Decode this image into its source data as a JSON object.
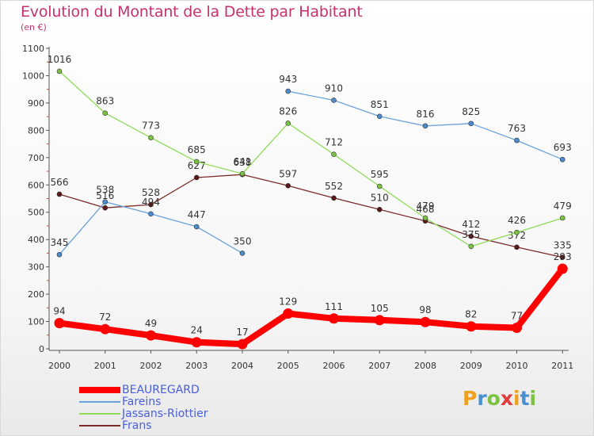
{
  "title": "Evolution du Montant de la Dette par Habitant",
  "subtitle": "(en €)",
  "logo": {
    "text": "Proxiti",
    "letters": [
      {
        "ch": "P",
        "color": "#f0a020"
      },
      {
        "ch": "r",
        "color": "#4a90d0"
      },
      {
        "ch": "o",
        "color": "#7cc242"
      },
      {
        "ch": "x",
        "color": "#e03c3c"
      },
      {
        "ch": "i",
        "color": "#f0a020"
      },
      {
        "ch": "t",
        "color": "#4a90d0"
      },
      {
        "ch": "i",
        "color": "#7cc242"
      }
    ]
  },
  "chart_data": {
    "type": "line",
    "title": "Evolution du Montant de la Dette par Habitant",
    "ylabel": "(en €)",
    "xlabel": "",
    "ylim": [
      0,
      1100
    ],
    "yticks": [
      0,
      100,
      200,
      300,
      400,
      500,
      600,
      700,
      800,
      900,
      1000,
      1100
    ],
    "categories": [
      "2000",
      "2001",
      "2002",
      "2003",
      "2004",
      "2005",
      "2006",
      "2007",
      "2008",
      "2009",
      "2010",
      "2011"
    ],
    "grid": false,
    "legend_position": "bottom-left",
    "series": [
      {
        "name": "Frans",
        "color": "#7a2a2a",
        "dot": "#5a1818",
        "values": [
          566,
          516,
          528,
          627,
          638,
          597,
          552,
          510,
          468,
          412,
          372,
          335
        ],
        "labels": [
          "566",
          "516",
          "528",
          "627",
          "638",
          "597",
          "552",
          "510",
          "468",
          "412",
          "372",
          "335"
        ]
      },
      {
        "name": "Jassans-Riottier",
        "color": "#8edc5a",
        "dot": "#7cc242",
        "values": [
          1016,
          863,
          773,
          685,
          641,
          826,
          712,
          595,
          479,
          375,
          426,
          479
        ],
        "labels": [
          "1016",
          "863",
          "773",
          "685",
          "641",
          "826",
          "712",
          "595",
          "479",
          "375",
          "426",
          "479"
        ]
      },
      {
        "name": "Fareins",
        "color": "#6aa2d8",
        "dot": "#4a8ccc",
        "values": [
          345,
          538,
          494,
          447,
          350,
          943,
          910,
          851,
          816,
          825,
          763,
          693
        ],
        "labels": [
          "345",
          "538",
          "494",
          "447",
          "350",
          "943",
          "910",
          "851",
          "816",
          "825",
          "763",
          "693"
        ],
        "gap_after_index": 4
      },
      {
        "name": "BEAUREGARD",
        "color": "#ff0000",
        "dot": "#ff0000",
        "values": [
          94,
          72,
          49,
          24,
          17,
          129,
          111,
          105,
          98,
          82,
          77,
          293
        ],
        "labels": [
          "94",
          "72",
          "49",
          "24",
          "17",
          "129",
          "111",
          "105",
          "98",
          "82",
          "77",
          "293"
        ],
        "thick": true
      }
    ],
    "legend": [
      {
        "name": "BEAUREGARD",
        "color": "#ff0000"
      },
      {
        "name": "Fareins",
        "color": "#6aa2d8"
      },
      {
        "name": "Jassans-Riottier",
        "color": "#8edc5a"
      },
      {
        "name": "Frans",
        "color": "#7a2a2a"
      }
    ]
  }
}
